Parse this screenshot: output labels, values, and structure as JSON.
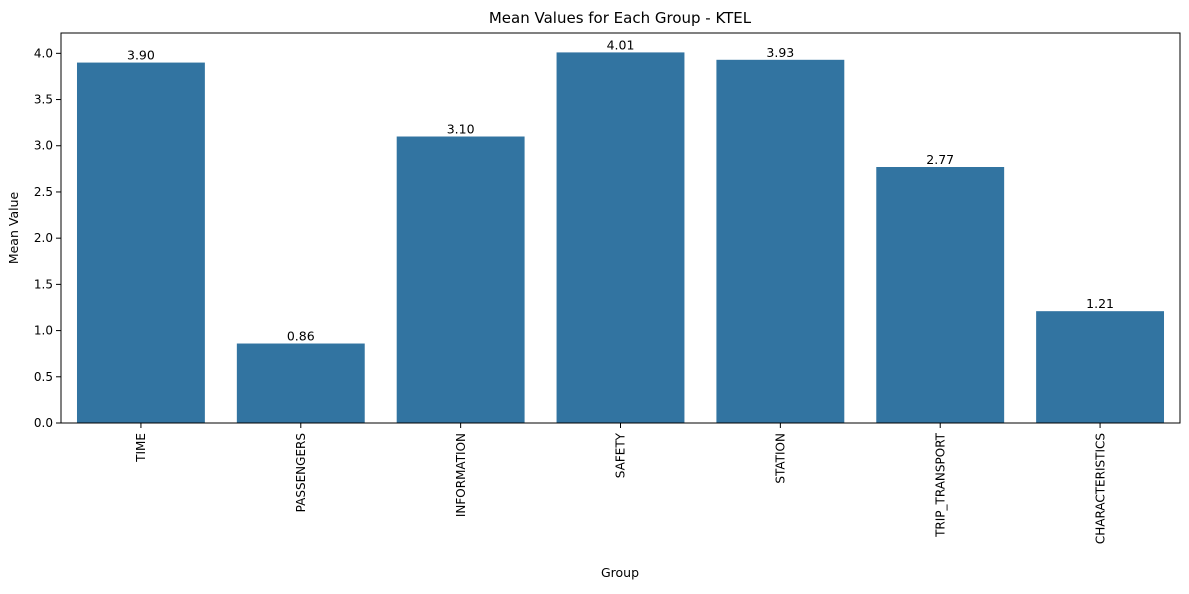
{
  "chart_data": {
    "type": "bar",
    "title": "Mean Values for Each Group - KTEL",
    "xlabel": "Group",
    "ylabel": "Mean Value",
    "categories": [
      "TIME",
      "PASSENGERS",
      "INFORMATION",
      "SAFETY",
      "STATION",
      "TRIP_TRANSPORT",
      "CHARACTERISTICS"
    ],
    "values": [
      3.9,
      0.86,
      3.1,
      4.01,
      3.93,
      2.77,
      1.21
    ],
    "value_labels": [
      "3.90",
      "0.86",
      "3.10",
      "4.01",
      "3.93",
      "2.77",
      "1.21"
    ],
    "ylim": [
      0,
      4.22
    ],
    "yticks": [
      0.0,
      0.5,
      1.0,
      1.5,
      2.0,
      2.5,
      3.0,
      3.5,
      4.0
    ],
    "ytick_labels": [
      "0.0",
      "0.5",
      "1.0",
      "1.5",
      "2.0",
      "2.5",
      "3.0",
      "3.5",
      "4.0"
    ],
    "grid": false,
    "legend": "none",
    "colors": {
      "bar": "#3274a1",
      "axis": "#000000"
    }
  }
}
